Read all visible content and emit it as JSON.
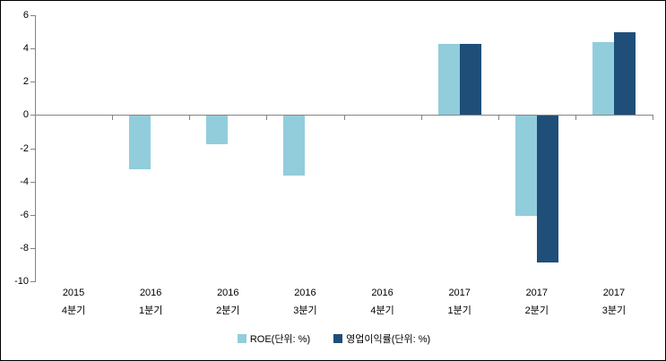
{
  "chart_data": {
    "type": "bar",
    "title": "",
    "xlabel": "",
    "ylabel": "",
    "categories": [
      {
        "line1": "2015",
        "line2": "4분기"
      },
      {
        "line1": "2016",
        "line2": "1분기"
      },
      {
        "line1": "2016",
        "line2": "2분기"
      },
      {
        "line1": "2016",
        "line2": "3분기"
      },
      {
        "line1": "2016",
        "line2": "4분기"
      },
      {
        "line1": "2017",
        "line2": "1분기"
      },
      {
        "line1": "2017",
        "line2": "2분기"
      },
      {
        "line1": "2017",
        "line2": "3분기"
      }
    ],
    "series": [
      {
        "name": "ROE(단위: %)",
        "color": "#92CDDC",
        "values": [
          null,
          -3.2,
          -1.7,
          -3.6,
          null,
          4.3,
          -6.0,
          4.4
        ]
      },
      {
        "name": "영업이익률(단위: %)",
        "color": "#1F4E79",
        "values": [
          null,
          null,
          null,
          null,
          null,
          4.3,
          -8.8,
          5.0
        ]
      }
    ],
    "y_axis": {
      "min": -10,
      "max": 6,
      "step": 2,
      "tick_labels": [
        "6",
        "4",
        "2",
        "0",
        "-2",
        "-4",
        "-6",
        "-8",
        "-10"
      ]
    },
    "grid": false,
    "legend_position": "bottom",
    "axis_color": "#848484",
    "text_color": "#000000"
  }
}
